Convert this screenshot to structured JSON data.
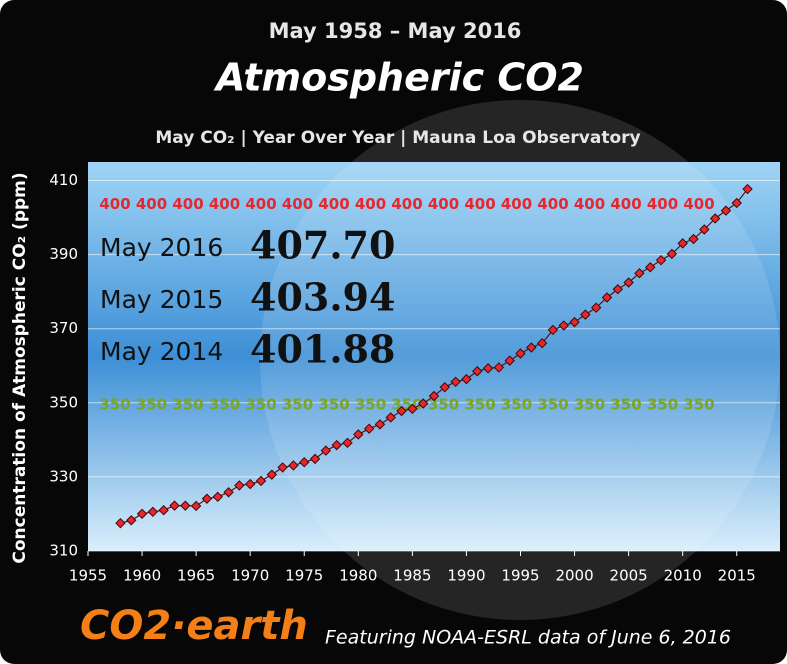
{
  "chart_data": {
    "type": "line",
    "supertitle": "May 1958 – May 2016",
    "title": "Atmospheric CO2",
    "subtitle": "May CO₂  | Year Over Year  | Mauna Loa Observatory",
    "ylabel": "Concentration of Atmospheric CO₂ (ppm)",
    "logo": "CO2·earth",
    "footer": "Featuring NOAA-ESRL data of June 6, 2016",
    "x": [
      1958,
      1959,
      1960,
      1961,
      1962,
      1963,
      1964,
      1965,
      1966,
      1967,
      1968,
      1969,
      1970,
      1971,
      1972,
      1973,
      1974,
      1975,
      1976,
      1977,
      1978,
      1979,
      1980,
      1981,
      1982,
      1983,
      1984,
      1985,
      1986,
      1987,
      1988,
      1989,
      1990,
      1991,
      1992,
      1993,
      1994,
      1995,
      1996,
      1997,
      1998,
      1999,
      2000,
      2001,
      2002,
      2003,
      2004,
      2005,
      2006,
      2007,
      2008,
      2009,
      2010,
      2011,
      2012,
      2013,
      2014,
      2015,
      2016
    ],
    "series": [
      {
        "name": "May CO₂",
        "color": "#e8262e",
        "values": [
          317.51,
          318.29,
          320.04,
          320.58,
          321.01,
          322.25,
          322.24,
          322.16,
          324.1,
          324.63,
          325.85,
          327.7,
          328.07,
          328.92,
          330.61,
          332.56,
          333.09,
          333.97,
          334.87,
          337.1,
          338.57,
          339.2,
          341.47,
          343.01,
          344.17,
          346.04,
          347.78,
          348.37,
          349.81,
          351.84,
          354.22,
          355.67,
          356.39,
          358.52,
          359.32,
          359.55,
          361.38,
          363.31,
          364.92,
          366.09,
          369.67,
          370.86,
          371.78,
          373.8,
          375.68,
          378.43,
          380.66,
          382.47,
          384.98,
          386.58,
          388.5,
          390.19,
          393.04,
          394.21,
          396.78,
          399.76,
          401.88,
          403.94,
          407.7
        ]
      }
    ],
    "xlim": [
      1955,
      2019
    ],
    "xticks": [
      1955,
      1960,
      1965,
      1970,
      1975,
      1980,
      1985,
      1990,
      1995,
      2000,
      2005,
      2010,
      2015
    ],
    "ylim": [
      310,
      415
    ],
    "yticks": [
      310,
      330,
      350,
      370,
      390,
      410
    ],
    "grid": true,
    "thresholds": [
      {
        "value": 400,
        "label": "400",
        "color": "#e8262e"
      },
      {
        "value": 350,
        "label": "350",
        "color": "#7aa526"
      }
    ],
    "highlights": {
      "labels": [
        "May 2016",
        "May 2015",
        "May 2014"
      ],
      "values": [
        407.7,
        403.94,
        401.88
      ],
      "value_labels": [
        "407.70",
        "403.94",
        "401.88"
      ]
    }
  }
}
